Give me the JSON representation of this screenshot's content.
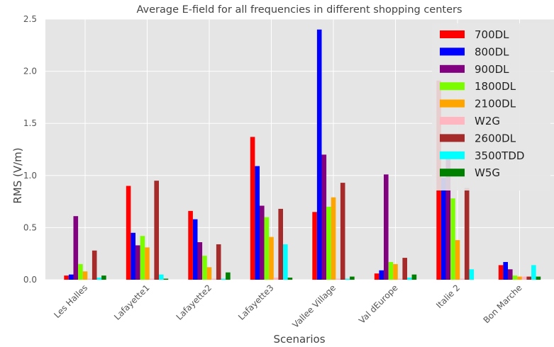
{
  "chart_data": {
    "type": "bar",
    "title": "Average E-field for all frequencies in different shopping centers",
    "xlabel": "Scenarios",
    "ylabel": "RMS (V/m)",
    "ylim": [
      0,
      2.5
    ],
    "yticks": [
      "0.0",
      "0.5",
      "1.0",
      "1.5",
      "2.0",
      "2.5"
    ],
    "grid": true,
    "legend_position": "top-right",
    "categories": [
      "Les Halles",
      "Lafayette1",
      "Lafayette2",
      "Lafayette3",
      "Vallee Village",
      "Val dEurope",
      "Italie 2",
      "Bon Marche"
    ],
    "series": [
      {
        "name": "700DL",
        "color": "#ff0000",
        "values": [
          0.04,
          0.9,
          0.66,
          1.37,
          0.65,
          0.06,
          1.91,
          0.14
        ]
      },
      {
        "name": "800DL",
        "color": "#0000ff",
        "values": [
          0.05,
          0.45,
          0.58,
          1.09,
          2.4,
          0.09,
          0.98,
          0.17
        ]
      },
      {
        "name": "900DL",
        "color": "#800080",
        "values": [
          0.61,
          0.33,
          0.36,
          0.71,
          1.2,
          1.01,
          1.23,
          0.1
        ]
      },
      {
        "name": "1800DL",
        "color": "#7cfc00",
        "values": [
          0.15,
          0.42,
          0.23,
          0.6,
          0.7,
          0.17,
          0.78,
          0.04
        ]
      },
      {
        "name": "2100DL",
        "color": "#ffa500",
        "values": [
          0.08,
          0.31,
          0.12,
          0.41,
          0.79,
          0.15,
          0.38,
          0.03
        ]
      },
      {
        "name": "W2G",
        "color": "#ffb6c1",
        "values": [
          0.01,
          0.01,
          0.01,
          0.02,
          0.01,
          0.01,
          0.01,
          0.03
        ]
      },
      {
        "name": "2600DL",
        "color": "#a52a2a",
        "values": [
          0.28,
          0.95,
          0.34,
          0.68,
          0.93,
          0.21,
          0.88,
          0.03
        ]
      },
      {
        "name": "3500TDD",
        "color": "#00ffff",
        "values": [
          0.02,
          0.05,
          0.01,
          0.34,
          0.01,
          0.02,
          0.1,
          0.14
        ]
      },
      {
        "name": "W5G",
        "color": "#008000",
        "values": [
          0.04,
          0.01,
          0.07,
          0.02,
          0.03,
          0.05,
          0.0,
          0.03
        ]
      }
    ]
  },
  "colors": {
    "plot_background": "#e5e5e5",
    "grid": "#ffffff",
    "legend_background": "#e5e5e5"
  }
}
